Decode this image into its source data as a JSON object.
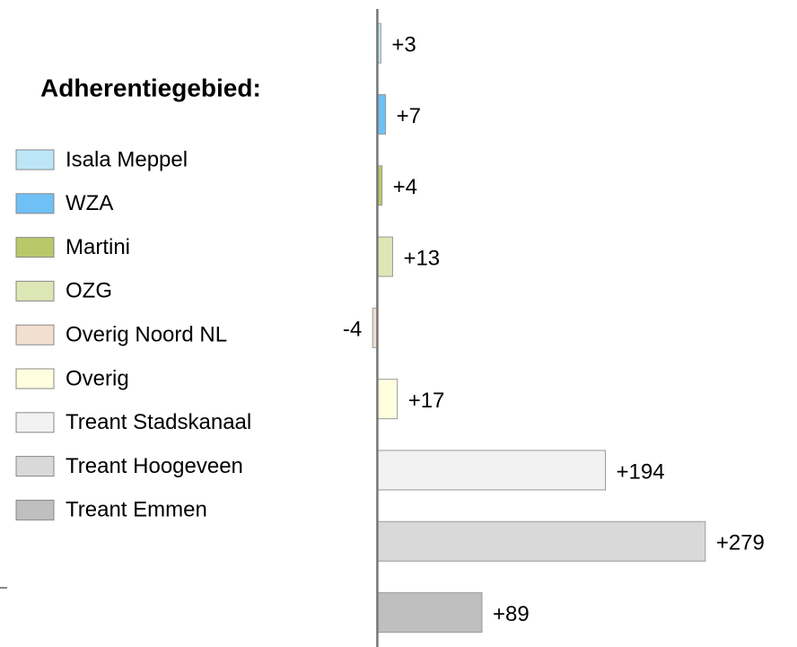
{
  "chart_data": {
    "type": "bar",
    "orientation": "horizontal",
    "legend_title": "Adherentiegebied:",
    "categories": [
      "Isala Meppel",
      "WZA",
      "Martini",
      "OZG",
      "Overig Noord NL",
      "Overig",
      "Treant Stadskanaal",
      "Treant Hoogeveen",
      "Treant Emmen"
    ],
    "values": [
      3,
      7,
      4,
      13,
      -4,
      17,
      194,
      279,
      89
    ],
    "value_labels": [
      "+3",
      "+7",
      "+4",
      "+13",
      "-4",
      "+17",
      "+194",
      "+279",
      "+89"
    ],
    "colors": [
      "#bde5f8",
      "#6fc0f5",
      "#b9c96a",
      "#dde6b5",
      "#f2dfcf",
      "#ffffdf",
      "#f2f2f2",
      "#d9d9d9",
      "#bfbfbf"
    ],
    "xlim": [
      -321,
      357
    ],
    "legend": "left"
  }
}
